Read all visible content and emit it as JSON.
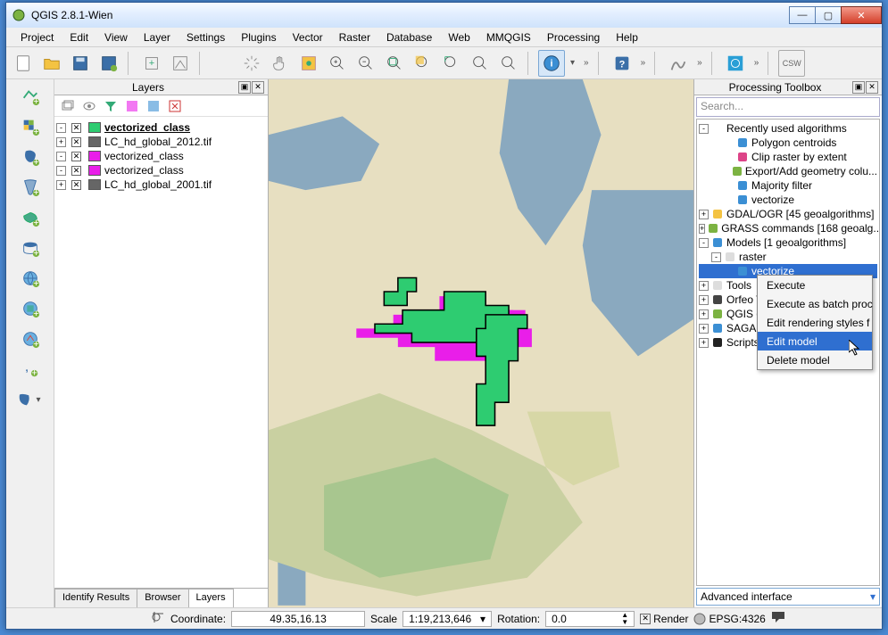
{
  "window_title": "QGIS 2.8.1-Wien",
  "menubar": [
    "Project",
    "Edit",
    "View",
    "Layer",
    "Settings",
    "Plugins",
    "Vector",
    "Raster",
    "Database",
    "Web",
    "MMQGIS",
    "Processing",
    "Help"
  ],
  "layers_panel": {
    "title": "Layers",
    "items": [
      {
        "swatch": "#2ecc71",
        "name": "vectorized_class",
        "active": true,
        "expand": "-"
      },
      {
        "swatch": "#666",
        "name": "LC_hd_global_2012.tif",
        "active": false,
        "expand": "+"
      },
      {
        "swatch": "#e91ee9",
        "name": "vectorized_class",
        "active": false,
        "expand": "-"
      },
      {
        "swatch": "#e91ee9",
        "name": "vectorized_class",
        "active": false,
        "expand": "-"
      },
      {
        "swatch": "#666",
        "name": "LC_hd_global_2001.tif",
        "active": false,
        "expand": "+"
      }
    ],
    "tabs": [
      "Identify Results",
      "Browser",
      "Layers"
    ]
  },
  "toolbox": {
    "title": "Processing Toolbox",
    "search_placeholder": "Search...",
    "root": "Recently used algorithms",
    "recent": [
      "Polygon centroids",
      "Clip raster by extent",
      "Export/Add geometry colu...",
      "Majority filter",
      "vectorize"
    ],
    "groups": [
      "GDAL/OGR [45 geoalgorithms]",
      "GRASS commands [168 geoalg...",
      "Models [1 geoalgorithms]"
    ],
    "models_sub": "raster",
    "models_sel": "vectorize",
    "groups2": [
      "Tools",
      "Orfeo Toolb",
      "QGIS geoa",
      "SAGA (2.1",
      "Scripts [0 g"
    ],
    "footer": "Advanced interface"
  },
  "context_menu": {
    "items": [
      "Execute",
      "Execute as batch proc",
      "Edit rendering styles f",
      "Edit model",
      "Delete model"
    ],
    "highlighted": 3
  },
  "statusbar": {
    "coord_label": "Coordinate:",
    "coord": "49.35,16.13",
    "scale_label": "Scale",
    "scale": "1:19,213,646",
    "rotation_label": "Rotation:",
    "rotation": "0.0",
    "render": "Render",
    "crs": "EPSG:4326"
  },
  "colors": {
    "water": "#8aa9bf",
    "land1": "#e7dfc1",
    "land2": "#c9d0a1",
    "land3": "#a8c68f",
    "green": "#2ecc71",
    "magenta": "#e91ee9",
    "border": "#000"
  }
}
